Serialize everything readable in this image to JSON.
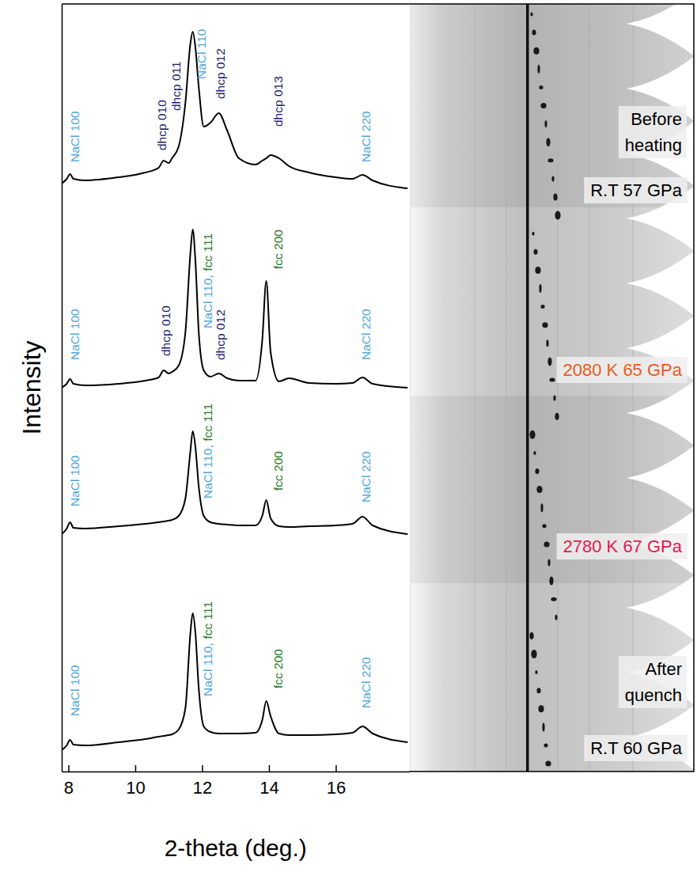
{
  "chart_data": {
    "type": "line",
    "x_label": "2-theta (deg.)",
    "y_label": "Intensity",
    "xlim": [
      7.8,
      18.2
    ],
    "xticks": [
      8,
      10,
      12,
      14,
      16
    ],
    "ylim": [
      0,
      97
    ],
    "yticks": [],
    "tick_labels": "x",
    "grid": false,
    "x": [
      7.8,
      7.95,
      8.05,
      8.15,
      8.5,
      9.5,
      10.3,
      10.7,
      10.85,
      11.0,
      11.1,
      11.3,
      11.5,
      11.65,
      11.72,
      11.8,
      11.9,
      12.05,
      12.25,
      12.5,
      12.75,
      13.1,
      13.6,
      13.8,
      13.92,
      14.05,
      14.3,
      14.6,
      15.2,
      16.0,
      16.5,
      16.8,
      17.1,
      18.15
    ],
    "series": [
      {
        "color": "#000000",
        "values": [
          74.3,
          74.9,
          75.5,
          74.9,
          74.7,
          75.1,
          75.7,
          76.3,
          77.2,
          76.9,
          77.5,
          79.0,
          84.5,
          92.0,
          93.5,
          91.5,
          86.5,
          81.5,
          82.0,
          83.2,
          81.0,
          77.5,
          76.7,
          77.2,
          77.5,
          77.9,
          77.5,
          76.5,
          75.7,
          75.1,
          74.9,
          75.4,
          74.7,
          73.7
        ]
      },
      {
        "color": "#000000",
        "values": [
          48.5,
          49.0,
          49.6,
          49.0,
          48.8,
          49.0,
          49.4,
          49.8,
          50.7,
          50.3,
          50.5,
          51.3,
          55.5,
          65.5,
          68.5,
          64.5,
          55.5,
          50.7,
          49.9,
          50.3,
          49.7,
          49.4,
          49.4,
          54.5,
          62.0,
          53.0,
          49.3,
          49.7,
          49.1,
          49.0,
          49.1,
          49.8,
          49.0,
          48.5
        ]
      },
      {
        "color": "#000000",
        "values": [
          30.0,
          30.7,
          31.5,
          30.8,
          30.7,
          31.0,
          31.3,
          31.5,
          31.6,
          31.7,
          31.8,
          32.3,
          34.5,
          40.5,
          43.0,
          41.0,
          36.0,
          32.3,
          31.5,
          31.3,
          31.2,
          31.1,
          31.1,
          32.3,
          34.3,
          32.0,
          31.0,
          30.9,
          31.0,
          31.1,
          31.3,
          32.2,
          31.1,
          30.0
        ]
      },
      {
        "color": "#000000",
        "values": [
          2.7,
          3.3,
          4.0,
          3.4,
          3.3,
          3.7,
          4.1,
          4.4,
          4.5,
          4.6,
          4.7,
          5.3,
          8.0,
          17.5,
          20.0,
          17.5,
          10.5,
          5.7,
          5.0,
          4.8,
          4.8,
          4.8,
          4.9,
          6.5,
          8.9,
          7.0,
          4.8,
          4.6,
          4.6,
          4.7,
          4.9,
          5.7,
          4.8,
          3.7
        ]
      }
    ],
    "annotations": [
      {
        "text": "NaCl 100",
        "x": 8.19,
        "y": 77.0,
        "color": "#4ea6dc"
      },
      {
        "text": "dhcp 010",
        "x": 10.8,
        "y": 78.5,
        "color": "#1b1b6b"
      },
      {
        "text": "dhcp 011",
        "x": 11.22,
        "y": 83.5,
        "color": "#1b1b6b"
      },
      {
        "text": "NaCl 110",
        "x": 11.98,
        "y": 87.5,
        "color": "#4ea6dc"
      },
      {
        "text": "dhcp 012",
        "x": 12.55,
        "y": 85.0,
        "color": "#1b1b6b"
      },
      {
        "text": "dhcp 013",
        "x": 14.27,
        "y": 81.5,
        "color": "#1b1b6b"
      },
      {
        "text": "NaCl 220",
        "x": 16.9,
        "y": 77.0,
        "color": "#4ea6dc"
      },
      {
        "text": "NaCl 100",
        "x": 8.19,
        "y": 52.0,
        "color": "#4ea6dc"
      },
      {
        "text": "dhcp 010",
        "x": 10.91,
        "y": 52.5,
        "color": "#1b1b6b"
      },
      {
        "parts": [
          {
            "text": "NaCl 110,",
            "color": "#4ea6dc"
          },
          {
            "text": "fcc 111",
            "color": "#1f7a1f"
          }
        ],
        "x": 12.15,
        "y": 56.0
      },
      {
        "text": "dhcp 012",
        "x": 12.55,
        "y": 52.0,
        "color": "#1b1b6b"
      },
      {
        "text": "fcc 200",
        "x": 14.27,
        "y": 63.5,
        "color": "#1f7a1f"
      },
      {
        "text": "NaCl 220",
        "x": 16.9,
        "y": 52.0,
        "color": "#4ea6dc"
      },
      {
        "text": "NaCl 100",
        "x": 8.19,
        "y": 33.5,
        "color": "#4ea6dc"
      },
      {
        "parts": [
          {
            "text": "NaCl 110,",
            "color": "#4ea6dc"
          },
          {
            "text": "fcc 111",
            "color": "#1f7a1f"
          }
        ],
        "x": 12.15,
        "y": 34.5
      },
      {
        "text": "fcc 200",
        "x": 14.27,
        "y": 35.5,
        "color": "#1f7a1f"
      },
      {
        "text": "NaCl 220",
        "x": 16.9,
        "y": 34.0,
        "color": "#4ea6dc"
      },
      {
        "text": "NaCl 100",
        "x": 8.19,
        "y": 7.0,
        "color": "#4ea6dc"
      },
      {
        "parts": [
          {
            "text": "NaCl 110,",
            "color": "#4ea6dc"
          },
          {
            "text": "fcc 111",
            "color": "#1f7a1f"
          }
        ],
        "x": 12.15,
        "y": 9.5
      },
      {
        "text": "fcc 200",
        "x": 14.27,
        "y": 10.5,
        "color": "#1f7a1f"
      },
      {
        "text": "NaCl 220",
        "x": 16.9,
        "y": 8.0,
        "color": "#4ea6dc"
      }
    ],
    "panel_labels": [
      {
        "lines": [
          "Before",
          "heating"
        ],
        "color": "#000000"
      },
      {
        "lines": [
          "R.T 57 GPa"
        ],
        "color": "#000000"
      },
      {
        "lines": [
          "2080 K 65 GPa"
        ],
        "color": "#e65c1a"
      },
      {
        "lines": [
          "2780 K 67 GPa"
        ],
        "color": "#e8174f"
      },
      {
        "lines": [
          "After",
          "quench"
        ],
        "color": "#000000"
      },
      {
        "lines": [
          "R.T 60 GPa"
        ],
        "color": "#000000"
      }
    ]
  }
}
